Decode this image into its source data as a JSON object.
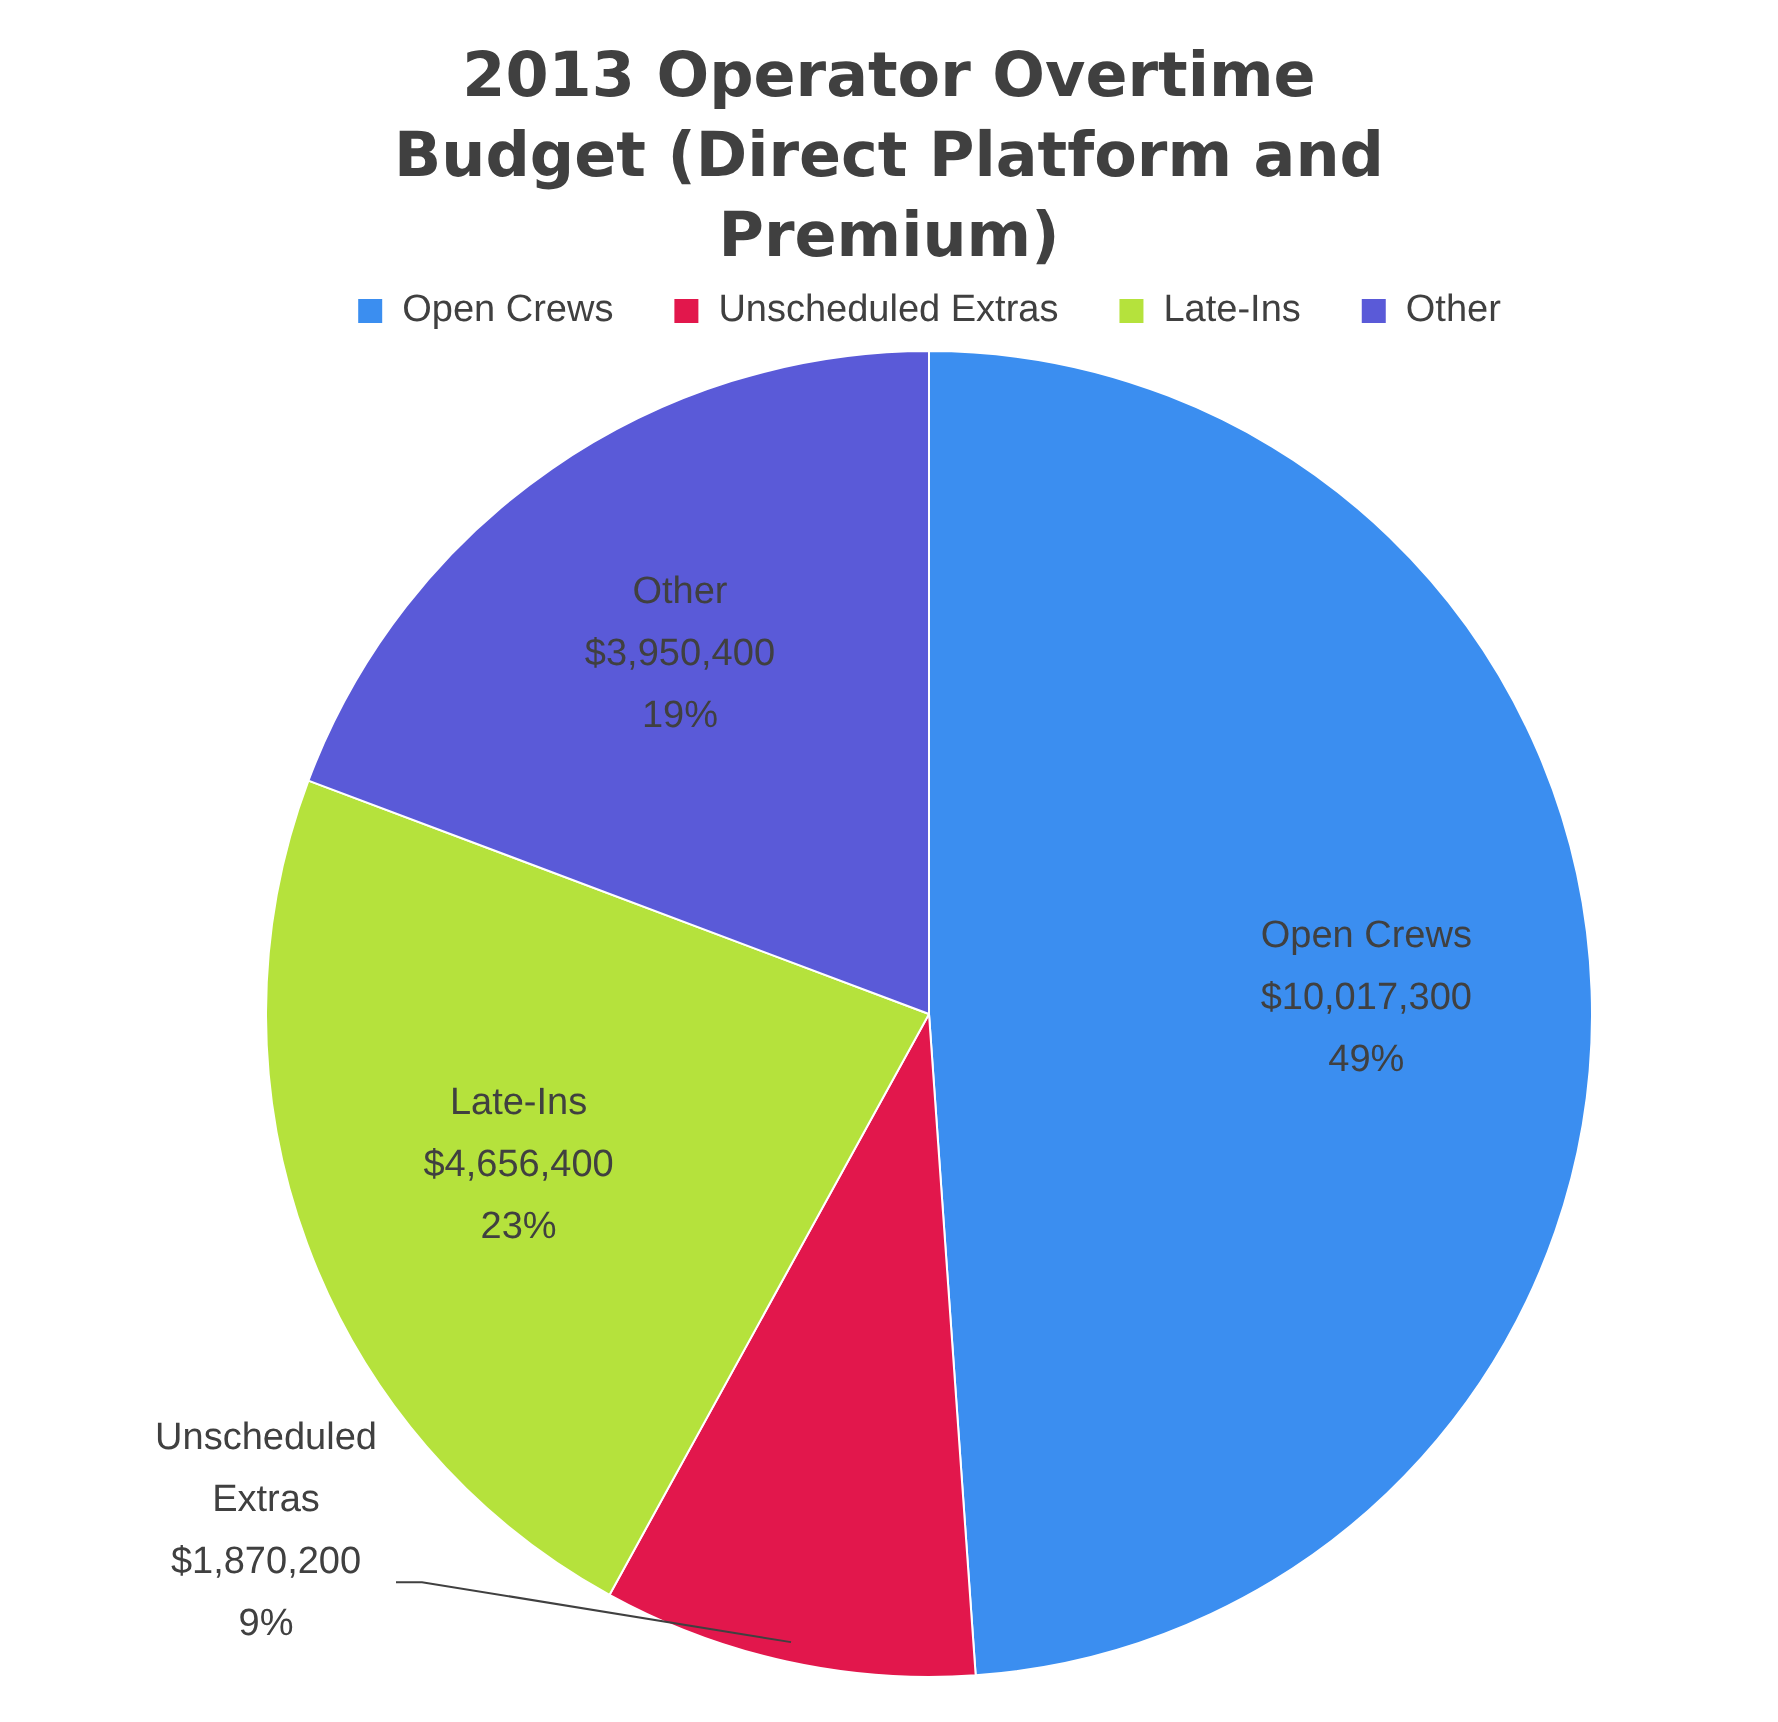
{
  "chart_data": {
    "type": "pie",
    "title": "2013 Operator Overtime Budget (Direct Platform and Premium)",
    "categories": [
      "Open Crews",
      "Unscheduled Extras",
      "Late-Ins",
      "Other"
    ],
    "values": [
      10017300,
      1870200,
      4656400,
      3950400
    ],
    "colors": [
      "#3b8ef0",
      "#e2174c",
      "#b5e23c",
      "#5a5ad8"
    ],
    "value_labels": [
      "$10,017,300\n49%",
      "$1,870,200\n9%",
      "$4,656,400\n23%",
      "$3,950,400\n19%"
    ],
    "legend": "top"
  }
}
